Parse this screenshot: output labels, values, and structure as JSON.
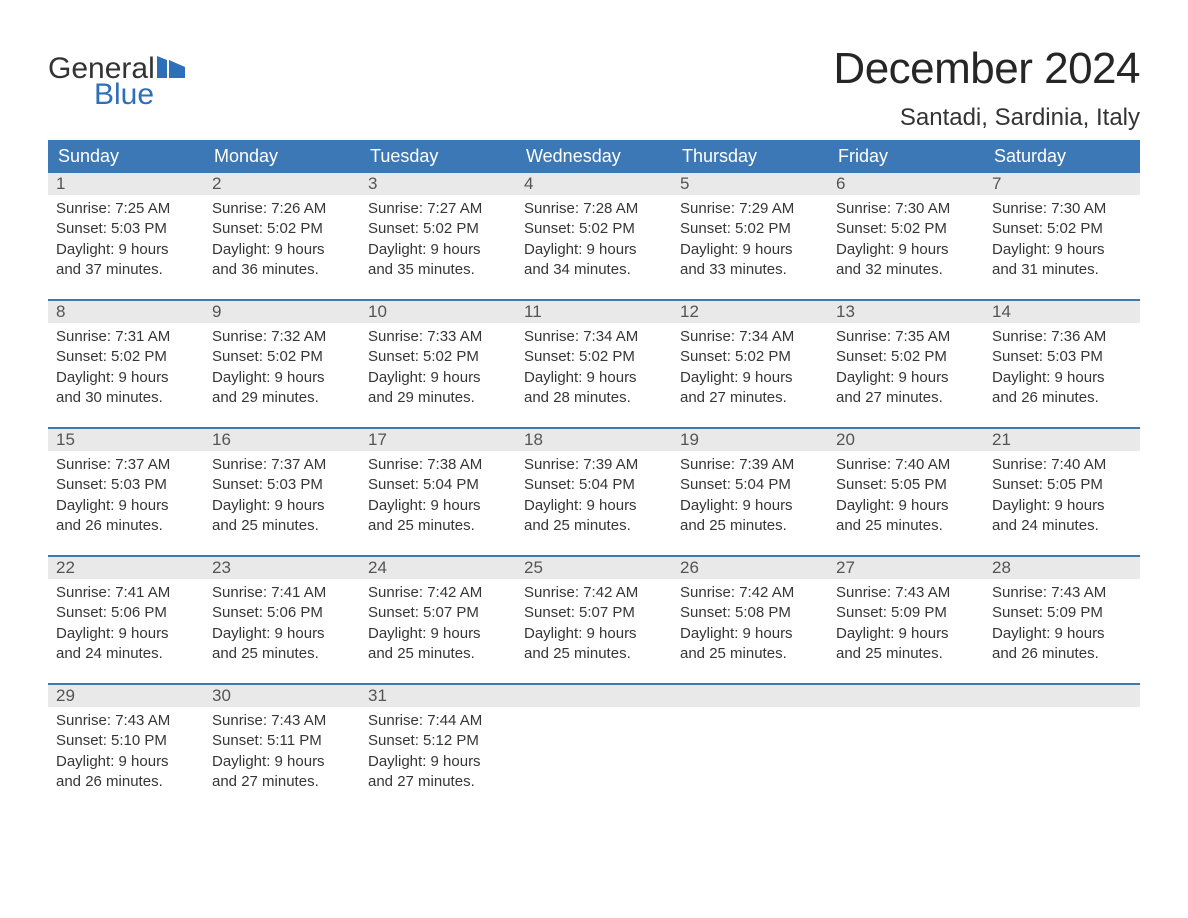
{
  "logo": {
    "word1": "General",
    "word2": "Blue",
    "text_color": "#333333",
    "accent_color": "#2d6fb8",
    "flag_color": "#2d6fb8"
  },
  "header": {
    "title": "December 2024",
    "location": "Santadi, Sardinia, Italy"
  },
  "colors": {
    "weekday_bg": "#3b78b5",
    "weekday_fg": "#ffffff",
    "daynum_bg": "#e9e9e9",
    "daynum_fg": "#555555",
    "body_fg": "#363636",
    "week_border": "#3b78b5",
    "page_bg": "#ffffff"
  },
  "typography": {
    "title_fontsize": 44,
    "location_fontsize": 24,
    "weekday_fontsize": 18,
    "daynum_fontsize": 17,
    "body_fontsize": 15
  },
  "weekdays": [
    "Sunday",
    "Monday",
    "Tuesday",
    "Wednesday",
    "Thursday",
    "Friday",
    "Saturday"
  ],
  "days": [
    {
      "n": "1",
      "sunrise": "Sunrise: 7:25 AM",
      "sunset": "Sunset: 5:03 PM",
      "dl1": "Daylight: 9 hours",
      "dl2": "and 37 minutes."
    },
    {
      "n": "2",
      "sunrise": "Sunrise: 7:26 AM",
      "sunset": "Sunset: 5:02 PM",
      "dl1": "Daylight: 9 hours",
      "dl2": "and 36 minutes."
    },
    {
      "n": "3",
      "sunrise": "Sunrise: 7:27 AM",
      "sunset": "Sunset: 5:02 PM",
      "dl1": "Daylight: 9 hours",
      "dl2": "and 35 minutes."
    },
    {
      "n": "4",
      "sunrise": "Sunrise: 7:28 AM",
      "sunset": "Sunset: 5:02 PM",
      "dl1": "Daylight: 9 hours",
      "dl2": "and 34 minutes."
    },
    {
      "n": "5",
      "sunrise": "Sunrise: 7:29 AM",
      "sunset": "Sunset: 5:02 PM",
      "dl1": "Daylight: 9 hours",
      "dl2": "and 33 minutes."
    },
    {
      "n": "6",
      "sunrise": "Sunrise: 7:30 AM",
      "sunset": "Sunset: 5:02 PM",
      "dl1": "Daylight: 9 hours",
      "dl2": "and 32 minutes."
    },
    {
      "n": "7",
      "sunrise": "Sunrise: 7:30 AM",
      "sunset": "Sunset: 5:02 PM",
      "dl1": "Daylight: 9 hours",
      "dl2": "and 31 minutes."
    },
    {
      "n": "8",
      "sunrise": "Sunrise: 7:31 AM",
      "sunset": "Sunset: 5:02 PM",
      "dl1": "Daylight: 9 hours",
      "dl2": "and 30 minutes."
    },
    {
      "n": "9",
      "sunrise": "Sunrise: 7:32 AM",
      "sunset": "Sunset: 5:02 PM",
      "dl1": "Daylight: 9 hours",
      "dl2": "and 29 minutes."
    },
    {
      "n": "10",
      "sunrise": "Sunrise: 7:33 AM",
      "sunset": "Sunset: 5:02 PM",
      "dl1": "Daylight: 9 hours",
      "dl2": "and 29 minutes."
    },
    {
      "n": "11",
      "sunrise": "Sunrise: 7:34 AM",
      "sunset": "Sunset: 5:02 PM",
      "dl1": "Daylight: 9 hours",
      "dl2": "and 28 minutes."
    },
    {
      "n": "12",
      "sunrise": "Sunrise: 7:34 AM",
      "sunset": "Sunset: 5:02 PM",
      "dl1": "Daylight: 9 hours",
      "dl2": "and 27 minutes."
    },
    {
      "n": "13",
      "sunrise": "Sunrise: 7:35 AM",
      "sunset": "Sunset: 5:02 PM",
      "dl1": "Daylight: 9 hours",
      "dl2": "and 27 minutes."
    },
    {
      "n": "14",
      "sunrise": "Sunrise: 7:36 AM",
      "sunset": "Sunset: 5:03 PM",
      "dl1": "Daylight: 9 hours",
      "dl2": "and 26 minutes."
    },
    {
      "n": "15",
      "sunrise": "Sunrise: 7:37 AM",
      "sunset": "Sunset: 5:03 PM",
      "dl1": "Daylight: 9 hours",
      "dl2": "and 26 minutes."
    },
    {
      "n": "16",
      "sunrise": "Sunrise: 7:37 AM",
      "sunset": "Sunset: 5:03 PM",
      "dl1": "Daylight: 9 hours",
      "dl2": "and 25 minutes."
    },
    {
      "n": "17",
      "sunrise": "Sunrise: 7:38 AM",
      "sunset": "Sunset: 5:04 PM",
      "dl1": "Daylight: 9 hours",
      "dl2": "and 25 minutes."
    },
    {
      "n": "18",
      "sunrise": "Sunrise: 7:39 AM",
      "sunset": "Sunset: 5:04 PM",
      "dl1": "Daylight: 9 hours",
      "dl2": "and 25 minutes."
    },
    {
      "n": "19",
      "sunrise": "Sunrise: 7:39 AM",
      "sunset": "Sunset: 5:04 PM",
      "dl1": "Daylight: 9 hours",
      "dl2": "and 25 minutes."
    },
    {
      "n": "20",
      "sunrise": "Sunrise: 7:40 AM",
      "sunset": "Sunset: 5:05 PM",
      "dl1": "Daylight: 9 hours",
      "dl2": "and 25 minutes."
    },
    {
      "n": "21",
      "sunrise": "Sunrise: 7:40 AM",
      "sunset": "Sunset: 5:05 PM",
      "dl1": "Daylight: 9 hours",
      "dl2": "and 24 minutes."
    },
    {
      "n": "22",
      "sunrise": "Sunrise: 7:41 AM",
      "sunset": "Sunset: 5:06 PM",
      "dl1": "Daylight: 9 hours",
      "dl2": "and 24 minutes."
    },
    {
      "n": "23",
      "sunrise": "Sunrise: 7:41 AM",
      "sunset": "Sunset: 5:06 PM",
      "dl1": "Daylight: 9 hours",
      "dl2": "and 25 minutes."
    },
    {
      "n": "24",
      "sunrise": "Sunrise: 7:42 AM",
      "sunset": "Sunset: 5:07 PM",
      "dl1": "Daylight: 9 hours",
      "dl2": "and 25 minutes."
    },
    {
      "n": "25",
      "sunrise": "Sunrise: 7:42 AM",
      "sunset": "Sunset: 5:07 PM",
      "dl1": "Daylight: 9 hours",
      "dl2": "and 25 minutes."
    },
    {
      "n": "26",
      "sunrise": "Sunrise: 7:42 AM",
      "sunset": "Sunset: 5:08 PM",
      "dl1": "Daylight: 9 hours",
      "dl2": "and 25 minutes."
    },
    {
      "n": "27",
      "sunrise": "Sunrise: 7:43 AM",
      "sunset": "Sunset: 5:09 PM",
      "dl1": "Daylight: 9 hours",
      "dl2": "and 25 minutes."
    },
    {
      "n": "28",
      "sunrise": "Sunrise: 7:43 AM",
      "sunset": "Sunset: 5:09 PM",
      "dl1": "Daylight: 9 hours",
      "dl2": "and 26 minutes."
    },
    {
      "n": "29",
      "sunrise": "Sunrise: 7:43 AM",
      "sunset": "Sunset: 5:10 PM",
      "dl1": "Daylight: 9 hours",
      "dl2": "and 26 minutes."
    },
    {
      "n": "30",
      "sunrise": "Sunrise: 7:43 AM",
      "sunset": "Sunset: 5:11 PM",
      "dl1": "Daylight: 9 hours",
      "dl2": "and 27 minutes."
    },
    {
      "n": "31",
      "sunrise": "Sunrise: 7:44 AM",
      "sunset": "Sunset: 5:12 PM",
      "dl1": "Daylight: 9 hours",
      "dl2": "and 27 minutes."
    }
  ]
}
